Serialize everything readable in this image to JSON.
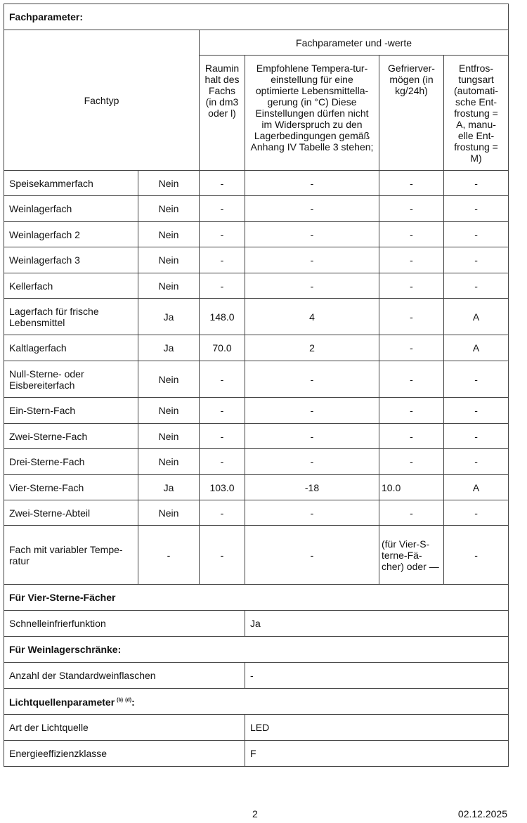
{
  "title": "Fachparameter:",
  "header": {
    "fachtyp": "Fachtyp",
    "group": "Fachparameter und -werte",
    "volume": "Raumin halt des Fachs (in dm3 oder l)",
    "temperature": "Empfohlene Tempera-tur-einstellung für eine optimierte Lebensmittella-gerung (in °C) Diese Einstellungen dürfen nicht im Widerspruch zu den Lagerbedingungen gemäß Anhang IV Tabelle 3 stehen;",
    "freezing": "Gefrierver-mögen (in kg/24h)",
    "defrost": "Entfros-tungsart (automati-sche Ent-frostung = A, manu-elle Ent-frostung = M)"
  },
  "compartments": [
    {
      "type": "Speisekammerfach",
      "present": "Nein",
      "volume": "-",
      "temp": "-",
      "freezing": "-",
      "defrost": "-"
    },
    {
      "type": "Weinlagerfach",
      "present": "Nein",
      "volume": "-",
      "temp": "-",
      "freezing": "-",
      "defrost": "-"
    },
    {
      "type": "Weinlagerfach 2",
      "present": "Nein",
      "volume": "-",
      "temp": "-",
      "freezing": "-",
      "defrost": "-"
    },
    {
      "type": "Weinlagerfach 3",
      "present": "Nein",
      "volume": "-",
      "temp": "-",
      "freezing": "-",
      "defrost": "-"
    },
    {
      "type": "Kellerfach",
      "present": "Nein",
      "volume": "-",
      "temp": "-",
      "freezing": "-",
      "defrost": "-"
    },
    {
      "type": "Lagerfach für frische Lebensmittel",
      "present": "Ja",
      "volume": "148.0",
      "temp": "4",
      "freezing": "-",
      "defrost": "A"
    },
    {
      "type": "Kaltlagerfach",
      "present": "Ja",
      "volume": "70.0",
      "temp": "2",
      "freezing": "-",
      "defrost": "A"
    },
    {
      "type": "Null-Sterne- oder Eisbereiterfach",
      "present": "Nein",
      "volume": "-",
      "temp": "-",
      "freezing": "-",
      "defrost": "-"
    },
    {
      "type": "Ein-Stern-Fach",
      "present": "Nein",
      "volume": "-",
      "temp": "-",
      "freezing": "-",
      "defrost": "-"
    },
    {
      "type": "Zwei-Sterne-Fach",
      "present": "Nein",
      "volume": "-",
      "temp": "-",
      "freezing": "-",
      "defrost": "-"
    },
    {
      "type": "Drei-Sterne-Fach",
      "present": "Nein",
      "volume": "-",
      "temp": "-",
      "freezing": "-",
      "defrost": "-"
    },
    {
      "type": "Vier-Sterne-Fach",
      "present": "Ja",
      "volume": "103.0",
      "temp": "-18",
      "freezing": "10.0",
      "defrost": "A"
    },
    {
      "type": "Zwei-Sterne-Abteil",
      "present": "Nein",
      "volume": "-",
      "temp": "-",
      "freezing": "-",
      "defrost": "-"
    },
    {
      "type": "Fach mit variabler Tempe-ratur",
      "present": "-",
      "volume": "-",
      "temp": "-",
      "freezing": "(für Vier-S-terne-Fä-cher) oder —",
      "defrost": "-"
    }
  ],
  "four_star": {
    "heading": "Für Vier-Sterne-Fächer",
    "label": "Schnelleinfrierfunktion",
    "value": "Ja"
  },
  "wine": {
    "heading": "Für Weinlagerschränke:",
    "label": "Anzahl der Standardweinflaschen",
    "value": "-"
  },
  "light": {
    "heading": "Lichtquellenparameter",
    "note_b": "(b)",
    "note_d": "(d)",
    "colon": ":",
    "type_label": "Art der Lichtquelle",
    "type_value": "LED",
    "class_label": "Energieeffizienzklasse",
    "class_value": "F"
  },
  "footer": {
    "page": "2",
    "date": "02.12.2025"
  }
}
